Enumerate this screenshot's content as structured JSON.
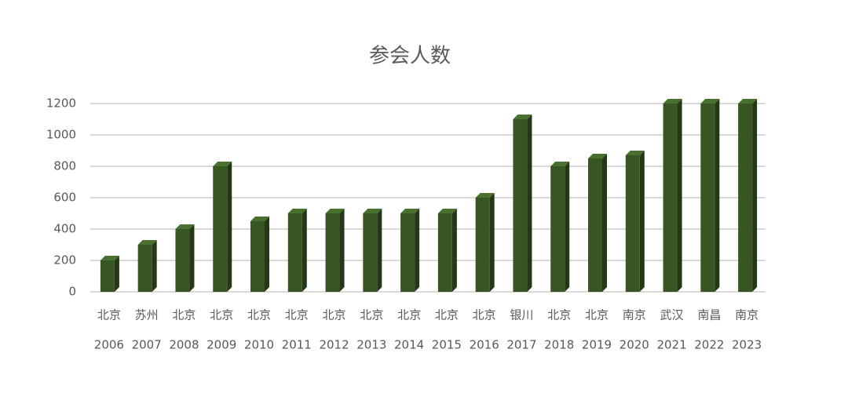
{
  "chart_data": {
    "type": "bar3d",
    "title": "参会人数",
    "categories": [
      [
        "北京",
        "2006"
      ],
      [
        "苏州",
        "2007"
      ],
      [
        "北京",
        "2008"
      ],
      [
        "北京",
        "2009"
      ],
      [
        "北京",
        "2010"
      ],
      [
        "北京",
        "2011"
      ],
      [
        "北京",
        "2012"
      ],
      [
        "北京",
        "2013"
      ],
      [
        "北京",
        "2014"
      ],
      [
        "北京",
        "2015"
      ],
      [
        "北京",
        "2016"
      ],
      [
        "银川",
        "2017"
      ],
      [
        "北京",
        "2018"
      ],
      [
        "北京",
        "2019"
      ],
      [
        "南京",
        "2020"
      ],
      [
        "武汉",
        "2021"
      ],
      [
        "南昌",
        "2022"
      ],
      [
        "南京",
        "2023"
      ]
    ],
    "values": [
      200,
      300,
      400,
      800,
      450,
      500,
      500,
      500,
      500,
      500,
      600,
      1100,
      800,
      850,
      870,
      1200,
      1200,
      1200
    ],
    "color": "#375623",
    "ylim": [
      0,
      1200
    ],
    "yticks": [
      0,
      200,
      400,
      600,
      800,
      1000,
      1200
    ],
    "grid": true
  }
}
